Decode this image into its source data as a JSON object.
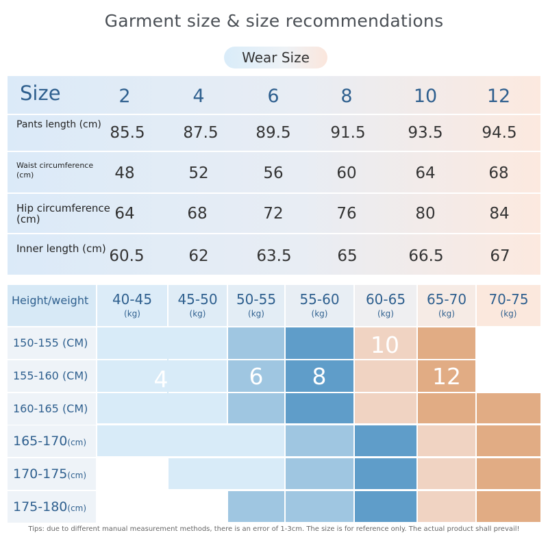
{
  "title": "Garment size & size recommendations",
  "pill": "Wear  Size",
  "table1": {
    "header_label": "Size",
    "sizes": [
      "2",
      "4",
      "6",
      "8",
      "10",
      "12"
    ],
    "rows": [
      {
        "label": "Pants length (cm)",
        "values": [
          "85.5",
          "87.5",
          "89.5",
          "91.5",
          "93.5",
          "94.5"
        ]
      },
      {
        "label_line1": "Waist circumference",
        "label_line2": "(cm)",
        "values": [
          "48",
          "52",
          "56",
          "60",
          "64",
          "68"
        ]
      },
      {
        "label_line1": "Hip circumference",
        "label_line2": "(cm)",
        "values": [
          "64",
          "68",
          "72",
          "76",
          "80",
          "84"
        ]
      },
      {
        "label": "Inner length (cm)",
        "values": [
          "60.5",
          "62",
          "63.5",
          "65",
          "66.5",
          "67"
        ]
      }
    ]
  },
  "table2": {
    "corner": "Height/weight",
    "weights": [
      "40-45",
      "45-50",
      "50-55",
      "55-60",
      "60-65",
      "65-70",
      "70-75"
    ],
    "weight_unit": "(kg)",
    "heights": [
      "150-155 (CM)",
      "155-160 (CM)",
      "160-165 (CM)"
    ],
    "heights_small": [
      {
        "num": "165-170",
        "unit": "(cm)"
      },
      {
        "num": "170-175",
        "unit": "(cm)"
      },
      {
        "num": "175-180",
        "unit": "(cm)"
      }
    ],
    "size_labels": {
      "s4": "4",
      "s6": "6",
      "s8": "8",
      "s10": "10",
      "s12": "12"
    }
  },
  "tips": "Tips: due to different manual measurement methods, there is an error of 1-3cm. The size is for reference only. The actual product shall prevail!",
  "colors": {
    "lightest_blue": "#d8ebf8",
    "light_blue": "#9fc6e1",
    "mid_blue": "#5f9dc9",
    "light_peach": "#f0d3c2",
    "peach": "#e1ac84",
    "text_blue": "#2e5f8e"
  }
}
